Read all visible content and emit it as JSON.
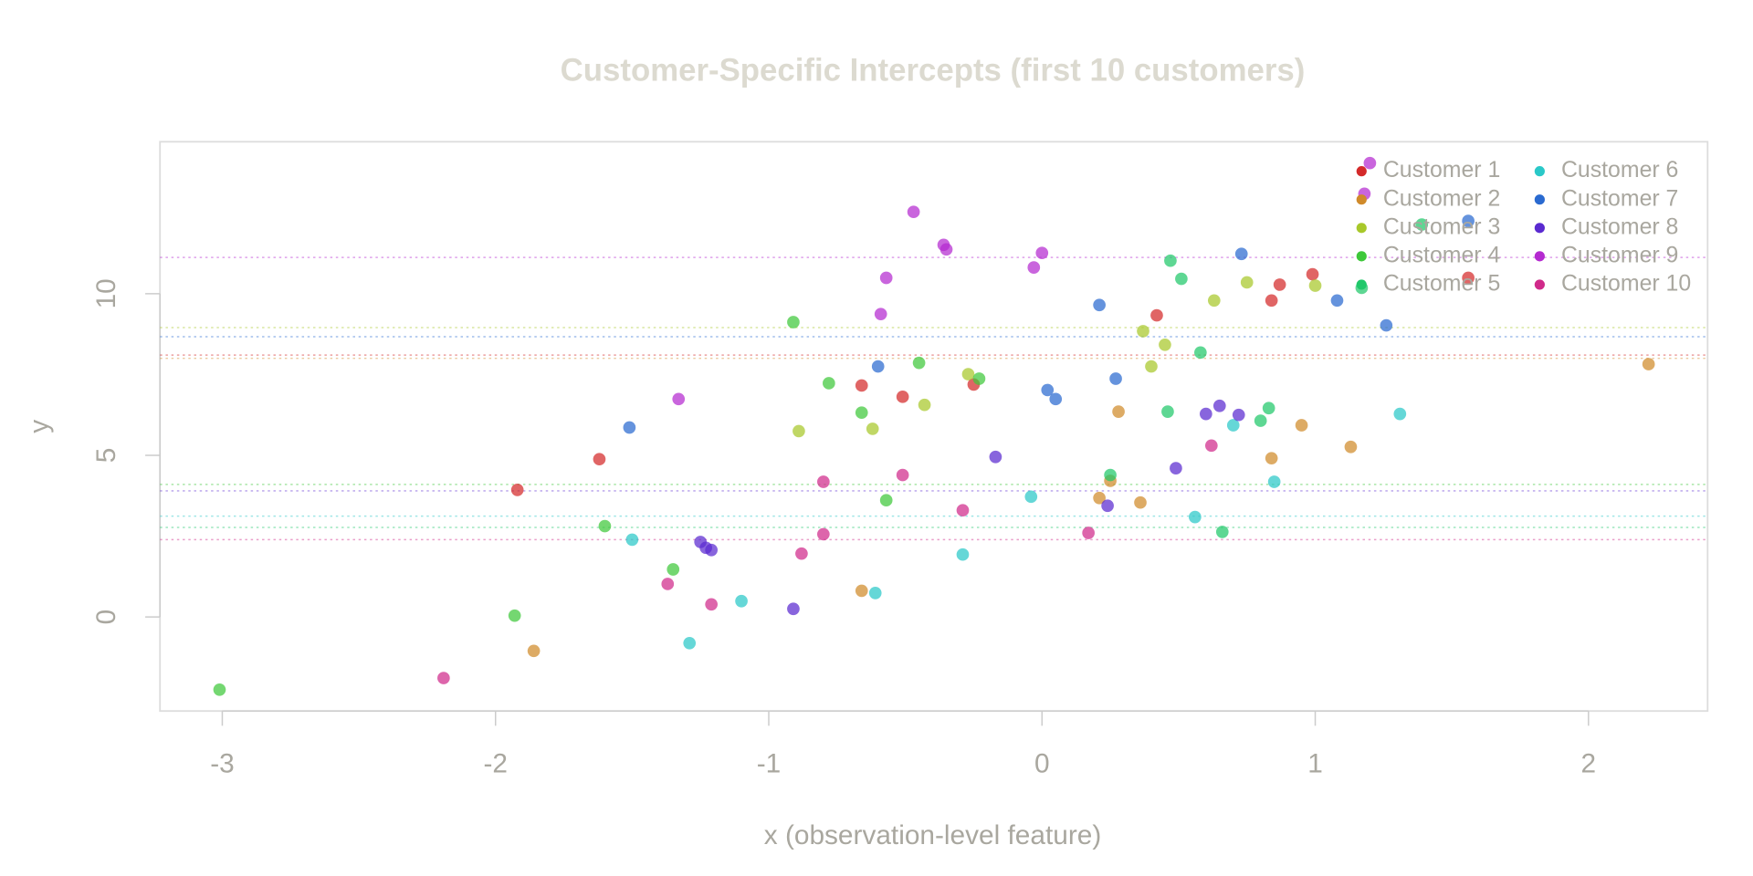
{
  "chart_data": {
    "type": "scatter",
    "title": "Customer-Specific Intercepts (first 10 customers)",
    "xlabel": "x (observation-level feature)",
    "ylabel": "y",
    "xlim": [
      -3.228,
      2.436
    ],
    "ylim": [
      -2.91,
      14.7
    ],
    "xticks": [
      -3,
      -2,
      -1,
      0,
      1,
      2
    ],
    "yticks": [
      0,
      5,
      10
    ],
    "legend": "top-right",
    "series": [
      {
        "name": "Customer 1",
        "color": "#d42a2a",
        "intercept": 8.1,
        "x": [
          -1.92,
          -1.62,
          -0.66,
          -0.51,
          -0.25,
          0.42,
          0.84,
          0.87,
          0.99,
          1.56
        ],
        "values": [
          3.93,
          4.88,
          7.16,
          6.81,
          7.19,
          9.33,
          9.79,
          10.28,
          10.6,
          10.49
        ]
      },
      {
        "name": "Customer 2",
        "color": "#d08a2a",
        "intercept": 8.0,
        "x": [
          -1.86,
          -0.66,
          0.21,
          0.25,
          0.28,
          0.36,
          0.84,
          0.95,
          1.13,
          2.22
        ],
        "values": [
          -1.05,
          0.81,
          3.68,
          4.21,
          6.35,
          3.54,
          4.91,
          5.93,
          5.26,
          7.82
        ]
      },
      {
        "name": "Customer 3",
        "color": "#a8c82a",
        "intercept": 8.95,
        "x": [
          -0.89,
          -0.62,
          -0.43,
          -0.27,
          0.37,
          0.4,
          0.45,
          0.63,
          0.75,
          1.0
        ],
        "values": [
          5.75,
          5.82,
          6.56,
          7.51,
          8.84,
          7.75,
          8.42,
          9.79,
          10.35,
          10.25
        ]
      },
      {
        "name": "Customer 4",
        "color": "#3ec83a",
        "intercept": 4.1,
        "x": [
          -3.01,
          -1.93,
          -1.6,
          -1.35,
          -0.91,
          -0.78,
          -0.66,
          -0.57,
          -0.45,
          -0.23
        ],
        "values": [
          -2.25,
          0.04,
          2.81,
          1.47,
          9.12,
          7.23,
          6.32,
          3.61,
          7.86,
          7.37
        ]
      },
      {
        "name": "Customer 5",
        "color": "#20c86a",
        "intercept": 2.77,
        "x": [
          0.25,
          0.46,
          0.47,
          0.51,
          0.58,
          0.66,
          0.8,
          0.83,
          1.17,
          1.39
        ],
        "values": [
          4.39,
          6.35,
          11.02,
          10.46,
          8.18,
          2.63,
          6.07,
          6.46,
          10.18,
          12.14
        ]
      },
      {
        "name": "Customer 6",
        "color": "#2ac8c8",
        "intercept": 3.12,
        "x": [
          -1.5,
          -1.29,
          -1.1,
          -0.61,
          -0.29,
          -0.04,
          0.56,
          0.7,
          0.85,
          1.31
        ],
        "values": [
          2.39,
          -0.81,
          0.49,
          0.74,
          1.93,
          3.72,
          3.09,
          5.93,
          4.18,
          6.28
        ]
      },
      {
        "name": "Customer 7",
        "color": "#2a6ad0",
        "intercept": 8.67,
        "x": [
          -1.51,
          -0.6,
          0.02,
          0.05,
          0.21,
          0.27,
          0.73,
          1.08,
          1.26,
          1.56
        ],
        "values": [
          5.86,
          7.75,
          7.02,
          6.74,
          9.65,
          7.37,
          11.23,
          9.79,
          9.02,
          12.25
        ]
      },
      {
        "name": "Customer 8",
        "color": "#5a2ad0",
        "intercept": 3.9,
        "x": [
          -1.25,
          -1.23,
          -1.21,
          -0.91,
          -0.17,
          0.24,
          0.49,
          0.6,
          0.65,
          0.72
        ],
        "values": [
          2.32,
          2.14,
          2.07,
          0.25,
          4.95,
          3.44,
          4.6,
          6.28,
          6.53,
          6.25
        ]
      },
      {
        "name": "Customer 9",
        "color": "#b42ad0",
        "intercept": 11.12,
        "x": [
          -1.33,
          -0.59,
          -0.57,
          -0.47,
          -0.36,
          -0.35,
          -0.03,
          0.0,
          1.18,
          1.2
        ],
        "values": [
          6.74,
          9.37,
          10.49,
          12.53,
          11.51,
          11.37,
          10.81,
          11.26,
          13.09,
          14.04
        ]
      },
      {
        "name": "Customer 10",
        "color": "#d02a8a",
        "intercept": 2.39,
        "x": [
          -2.19,
          -1.37,
          -1.21,
          -0.88,
          -0.8,
          -0.8,
          -0.51,
          -0.29,
          0.17,
          0.62
        ],
        "values": [
          -1.89,
          1.02,
          0.39,
          1.96,
          4.18,
          2.56,
          4.39,
          3.3,
          2.6,
          5.3
        ]
      }
    ]
  }
}
